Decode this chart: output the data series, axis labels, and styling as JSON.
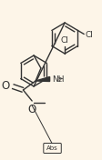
{
  "bg_color": "#fdf5e8",
  "line_color": "#333333",
  "figsize": [
    1.13,
    1.76
  ],
  "dpi": 100,
  "bond_lw": 1.0,
  "cl1_label": "Cl",
  "cl2_label": "Cl",
  "nh2_label": "NH",
  "nh2_sub": "2",
  "o1_label": "O",
  "o2_label": "O",
  "abs_label": "Abs",
  "font_size_atom": 6.5,
  "font_size_abs": 5.0
}
